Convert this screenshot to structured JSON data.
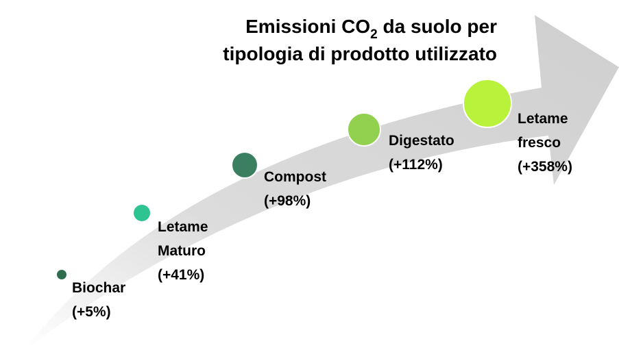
{
  "title": {
    "line1_start": "Emissioni CO",
    "line1_sub": "2",
    "line1_end": " da suolo per",
    "line2": "tipologia di prodotto utilizzato"
  },
  "items": [
    {
      "lines": [
        "Biochar",
        "(+5%)"
      ]
    },
    {
      "lines": [
        "Letame",
        "Maturo",
        "(+41%)"
      ]
    },
    {
      "lines": [
        "Compost",
        "(+98%)"
      ]
    },
    {
      "lines": [
        "Digestato",
        "(+112%)"
      ]
    },
    {
      "lines": [
        "Letame",
        "fresco",
        "(+358%)"
      ]
    }
  ]
}
